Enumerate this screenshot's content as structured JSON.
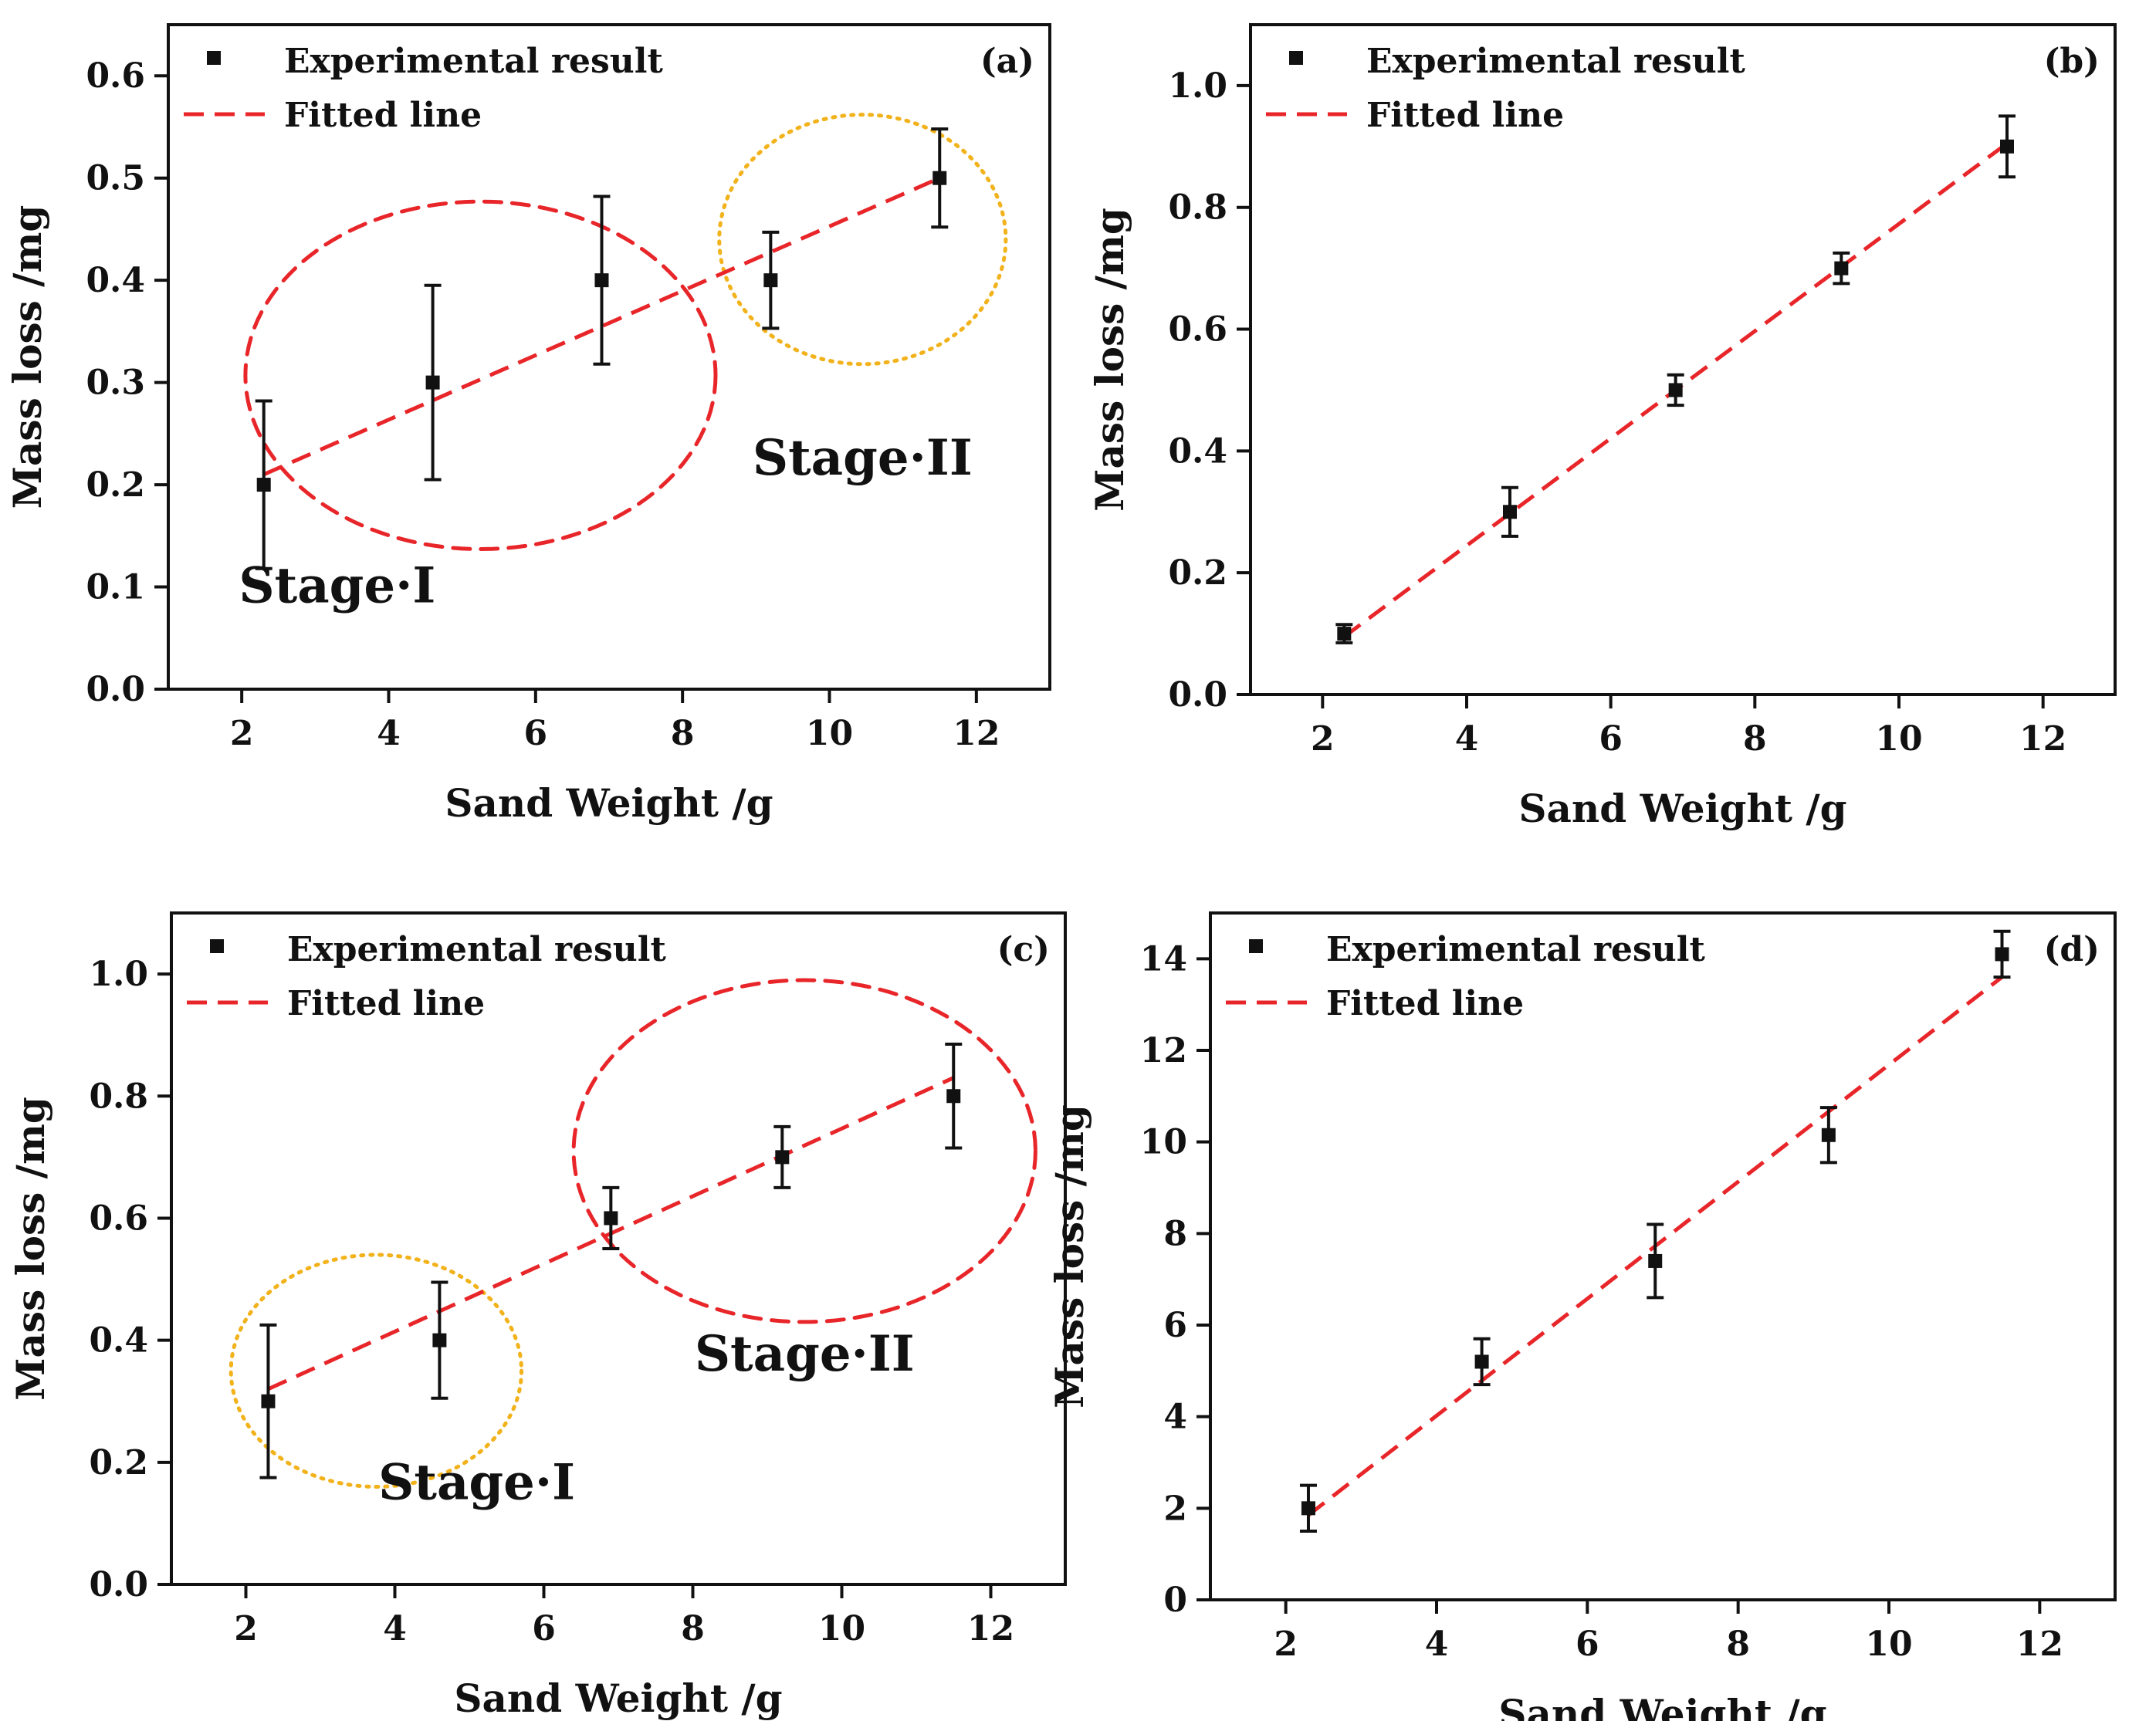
{
  "colors": {
    "marker": "#111111",
    "fit_line": "#e8262a",
    "ellipse_red": "#e8262a",
    "ellipse_yellow": "#f2b21b",
    "frame": "#111111"
  },
  "chart_data": [
    {
      "type": "scatter",
      "panel": "(a)",
      "xlabel": "Sand Weight /g",
      "ylabel": "Mass loss /mg",
      "xlim": [
        1,
        13
      ],
      "ylim": [
        0,
        0.65
      ],
      "xticks": [
        2,
        4,
        6,
        8,
        10,
        12
      ],
      "yticks": [
        0.0,
        0.1,
        0.2,
        0.3,
        0.4,
        0.5,
        0.6
      ],
      "ytick_decimals": 1,
      "legend": {
        "marker_label": "Experimental result",
        "line_label": "Fitted line",
        "position": "top-left"
      },
      "series": [
        {
          "name": "Experimental result",
          "x": [
            2.3,
            4.6,
            6.9,
            9.2,
            11.5
          ],
          "y": [
            0.2,
            0.3,
            0.4,
            0.4,
            0.5
          ],
          "yerr": [
            0.082,
            0.095,
            0.082,
            0.047,
            0.048
          ]
        }
      ],
      "fit": {
        "name": "Fitted line",
        "x": [
          2.3,
          11.5
        ],
        "y": [
          0.21,
          0.5
        ]
      },
      "regions": [
        {
          "label": "Stage·I",
          "color": "red",
          "style": "dashed",
          "cx": 5.25,
          "cy": 0.307,
          "rx": 3.2,
          "ry": 0.17,
          "label_x": 3.3,
          "label_y": 0.085
        },
        {
          "label": "Stage·II",
          "color": "yellow",
          "style": "dotted",
          "cx": 10.45,
          "cy": 0.44,
          "rx": 1.95,
          "ry": 0.122,
          "label_x": 10.45,
          "label_y": 0.21
        }
      ]
    },
    {
      "type": "scatter",
      "panel": "(b)",
      "xlabel": "Sand Weight /g",
      "ylabel": "Mass loss /mg",
      "xlim": [
        1,
        13
      ],
      "ylim": [
        0,
        1.1
      ],
      "xticks": [
        2,
        4,
        6,
        8,
        10,
        12
      ],
      "yticks": [
        0.0,
        0.2,
        0.4,
        0.6,
        0.8,
        1.0
      ],
      "ytick_decimals": 1,
      "legend": {
        "marker_label": "Experimental result",
        "line_label": "Fitted line",
        "position": "top-left"
      },
      "series": [
        {
          "name": "Experimental result",
          "x": [
            2.3,
            4.6,
            6.9,
            9.2,
            11.5
          ],
          "y": [
            0.1,
            0.3,
            0.5,
            0.7,
            0.9
          ],
          "yerr": [
            0.015,
            0.04,
            0.025,
            0.025,
            0.05
          ]
        }
      ],
      "fit": {
        "name": "Fitted line",
        "x": [
          2.3,
          11.5
        ],
        "y": [
          0.095,
          0.905
        ]
      },
      "regions": []
    },
    {
      "type": "scatter",
      "panel": "(c)",
      "xlabel": "Sand Weight /g",
      "ylabel": "Mass loss /mg",
      "xlim": [
        1,
        13
      ],
      "ylim": [
        0,
        1.1
      ],
      "xticks": [
        2,
        4,
        6,
        8,
        10,
        12
      ],
      "yticks": [
        0.0,
        0.2,
        0.4,
        0.6,
        0.8,
        1.0
      ],
      "ytick_decimals": 1,
      "legend": {
        "marker_label": "Experimental result",
        "line_label": "Fitted line",
        "position": "top-left"
      },
      "series": [
        {
          "name": "Experimental result",
          "x": [
            2.3,
            4.6,
            6.9,
            9.2,
            11.5
          ],
          "y": [
            0.3,
            0.4,
            0.6,
            0.7,
            0.8
          ],
          "yerr": [
            0.125,
            0.095,
            0.05,
            0.05,
            0.085
          ]
        }
      ],
      "fit": {
        "name": "Fitted line",
        "x": [
          2.3,
          11.5
        ],
        "y": [
          0.32,
          0.83
        ]
      },
      "regions": [
        {
          "label": "Stage·I",
          "color": "yellow",
          "style": "dotted",
          "cx": 3.75,
          "cy": 0.35,
          "rx": 1.95,
          "ry": 0.19,
          "label_x": 5.1,
          "label_y": 0.14
        },
        {
          "label": "Stage·II",
          "color": "red",
          "style": "dashed",
          "cx": 9.5,
          "cy": 0.71,
          "rx": 3.1,
          "ry": 0.28,
          "label_x": 9.5,
          "label_y": 0.35
        }
      ]
    },
    {
      "type": "scatter",
      "panel": "(d)",
      "xlabel": "Sand Weight /g",
      "ylabel": "Mass loss /mg",
      "xlim": [
        1,
        13
      ],
      "ylim": [
        0,
        15
      ],
      "xticks": [
        2,
        4,
        6,
        8,
        10,
        12
      ],
      "yticks": [
        0,
        2,
        4,
        6,
        8,
        10,
        12,
        14
      ],
      "ytick_decimals": 0,
      "legend": {
        "marker_label": "Experimental result",
        "line_label": "Fitted line",
        "position": "top-left"
      },
      "series": [
        {
          "name": "Experimental result",
          "x": [
            2.3,
            4.6,
            6.9,
            9.2,
            11.5
          ],
          "y": [
            2.0,
            5.2,
            7.4,
            10.15,
            14.1
          ],
          "yerr": [
            0.5,
            0.5,
            0.8,
            0.6,
            0.5
          ]
        }
      ],
      "fit": {
        "name": "Fitted line",
        "x": [
          2.3,
          11.5
        ],
        "y": [
          1.85,
          13.6
        ]
      },
      "regions": []
    }
  ]
}
